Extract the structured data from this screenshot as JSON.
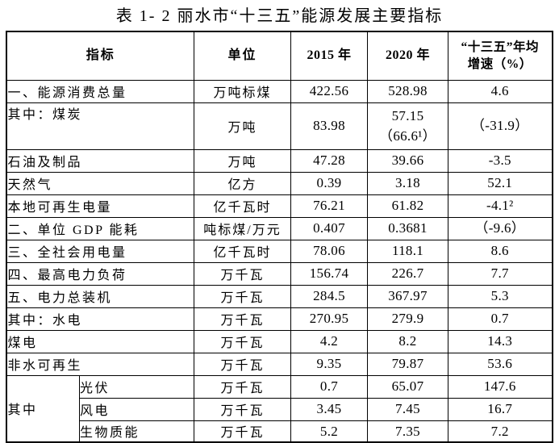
{
  "title": "表 1- 2 丽水市“十三五”能源发展主要指标",
  "table": {
    "headers": {
      "indicator": "指标",
      "unit": "单位",
      "y2015": "2015 年",
      "y2020": "2020 年",
      "growth": "“十三五”年均\n增速（%）"
    },
    "rows": [
      {
        "indicator": "一、能源消费总量",
        "unit": "万吨标煤",
        "y2015": "422.56",
        "y2020": "528.98",
        "growth": "4.6"
      },
      {
        "indicator": "其中：煤炭",
        "unit": "万吨",
        "y2015": "83.98",
        "y2020": "57.15\n（66.6¹）",
        "growth": "（-31.9）"
      },
      {
        "indicator": "石油及制品",
        "unit": "万吨",
        "y2015": "47.28",
        "y2020": "39.66",
        "growth": "-3.5"
      },
      {
        "indicator": "天然气",
        "unit": "亿方",
        "y2015": "0.39",
        "y2020": "3.18",
        "growth": "52.1"
      },
      {
        "indicator": "本地可再生电量",
        "unit": "亿千瓦时",
        "y2015": "76.21",
        "y2020": "61.82",
        "growth": "-4.1²"
      },
      {
        "indicator": "二、单位 GDP 能耗",
        "unit": "吨标煤/万元",
        "y2015": "0.407",
        "y2020": "0.3681",
        "growth": "（-9.6）"
      },
      {
        "indicator": "三、全社会用电量",
        "unit": "亿千瓦时",
        "y2015": "78.06",
        "y2020": "118.1",
        "growth": "8.6"
      },
      {
        "indicator": "四、最高电力负荷",
        "unit": "万千瓦",
        "y2015": "156.74",
        "y2020": "226.7",
        "growth": "7.7"
      },
      {
        "indicator": "五、电力总装机",
        "unit": "万千瓦",
        "y2015": "284.5",
        "y2020": "367.97",
        "growth": "5.3"
      },
      {
        "indicator": "其中：水电",
        "unit": "万千瓦",
        "y2015": "270.95",
        "y2020": "279.9",
        "growth": "0.7"
      },
      {
        "indicator": "煤电",
        "unit": "万千瓦",
        "y2015": "4.2",
        "y2020": "8.2",
        "growth": "14.3"
      },
      {
        "indicator": "非水可再生",
        "unit": "万千瓦",
        "y2015": "9.35",
        "y2020": "79.87",
        "growth": "53.6"
      },
      {
        "group": "其中",
        "indicator": "光伏",
        "unit": "万千瓦",
        "y2015": "0.7",
        "y2020": "65.07",
        "growth": "147.6"
      },
      {
        "indicator": "风电",
        "unit": "万千瓦",
        "y2015": "3.45",
        "y2020": "7.45",
        "growth": "16.7"
      },
      {
        "indicator": "生物质能",
        "unit": "万千瓦",
        "y2015": "5.2",
        "y2020": "7.35",
        "growth": "7.2"
      }
    ]
  }
}
